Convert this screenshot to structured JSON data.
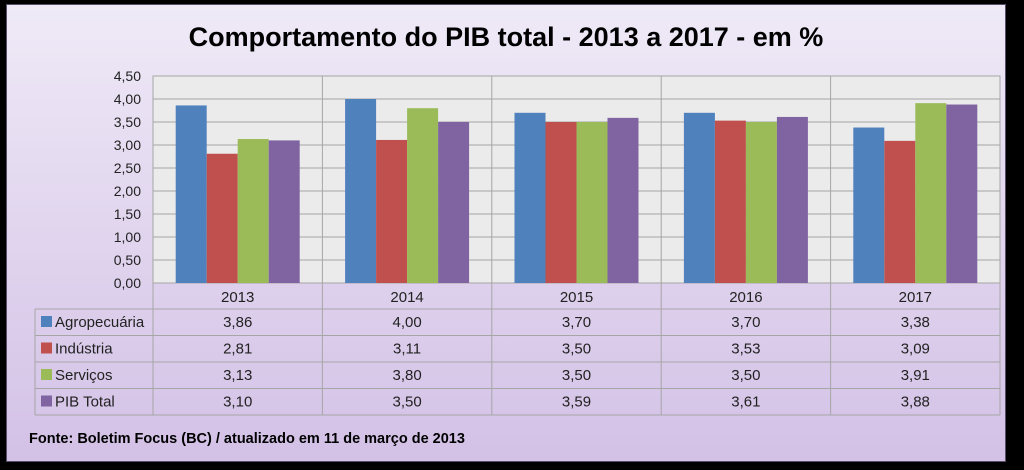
{
  "chart_data": {
    "type": "bar",
    "title": "Comportamento do PIB total - 2013 a 2017 - em %",
    "categories": [
      "2013",
      "2014",
      "2015",
      "2016",
      "2017"
    ],
    "series": [
      {
        "name": "Agropecuária",
        "color": "#4f81bd",
        "values": [
          3.86,
          4.0,
          3.7,
          3.7,
          3.38
        ],
        "labels": [
          "3,86",
          "4,00",
          "3,70",
          "3,70",
          "3,38"
        ]
      },
      {
        "name": "Indústria",
        "color": "#c0504d",
        "values": [
          2.81,
          3.11,
          3.5,
          3.53,
          3.09
        ],
        "labels": [
          "2,81",
          "3,11",
          "3,50",
          "3,53",
          "3,09"
        ]
      },
      {
        "name": "Serviços",
        "color": "#9bbb59",
        "values": [
          3.13,
          3.8,
          3.5,
          3.5,
          3.91
        ],
        "labels": [
          "3,13",
          "3,80",
          "3,50",
          "3,50",
          "3,91"
        ]
      },
      {
        "name": "PIB Total",
        "color": "#8064a2",
        "values": [
          3.1,
          3.5,
          3.59,
          3.61,
          3.88
        ],
        "labels": [
          "3,10",
          "3,50",
          "3,59",
          "3,61",
          "3,88"
        ]
      }
    ],
    "ylim": [
      0,
      4.5
    ],
    "yticks": [
      "0,00",
      "0,50",
      "1,00",
      "1,50",
      "2,00",
      "2,50",
      "3,00",
      "3,50",
      "4,00",
      "4,50"
    ],
    "grid": true,
    "legend": "data-table"
  },
  "source": "Fonte: Boletim Focus (BC) / atualizado  em 11 de março de 2013"
}
